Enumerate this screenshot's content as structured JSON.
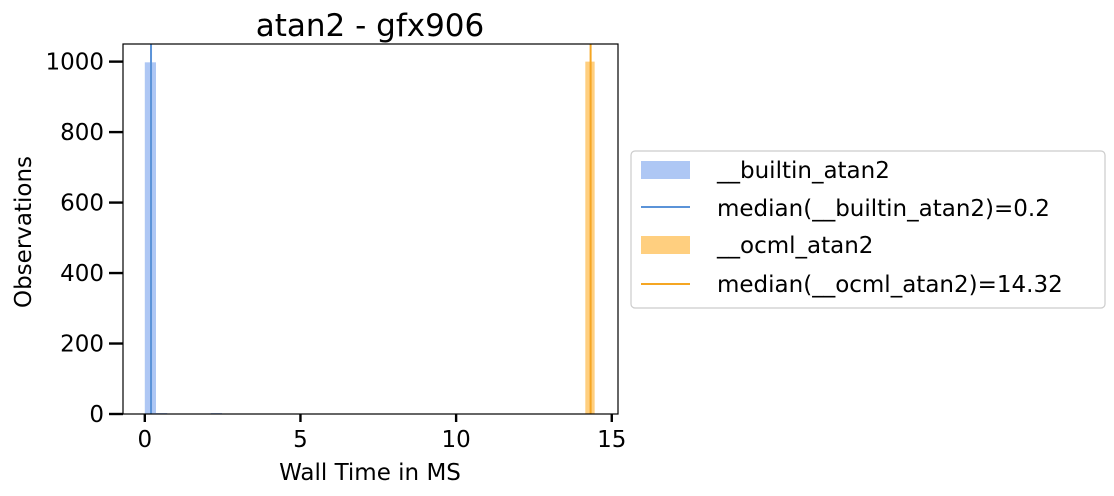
{
  "chart_data": {
    "type": "histogram",
    "title": "atan2 - gfx906",
    "xlabel": "Wall Time in MS",
    "ylabel": "Observations",
    "xlim": [
      -0.7,
      15.2
    ],
    "ylim": [
      0,
      1050
    ],
    "x_ticks": [
      0,
      5,
      10,
      15
    ],
    "y_ticks": [
      0,
      200,
      400,
      600,
      800,
      1000
    ],
    "x_tick_labels": [
      "0",
      "5",
      "10",
      "15"
    ],
    "y_tick_labels": [
      "0",
      "200",
      "400",
      "600",
      "800",
      "1000"
    ],
    "grid": false,
    "legend_position": "right, outside plot",
    "series": [
      {
        "name": "__builtin_atan2",
        "color": "#aec7f4",
        "bins": [
          {
            "x0": 0.0,
            "x1": 0.36,
            "count": 998
          },
          {
            "x0": 0.36,
            "x1": 0.72,
            "count": 1
          },
          {
            "x0": 2.12,
            "x1": 2.48,
            "count": 1
          }
        ],
        "median": 0.2,
        "median_color": "#5b93d8",
        "median_label": "median(__builtin_atan2)=0.2"
      },
      {
        "name": "__ocml_atan2",
        "color": "#ffcf7f",
        "bins": [
          {
            "x0": 14.15,
            "x1": 14.45,
            "count": 1000
          }
        ],
        "median": 14.32,
        "median_color": "#f5a623",
        "median_label": "median(__ocml_atan2)=14.32"
      }
    ]
  }
}
